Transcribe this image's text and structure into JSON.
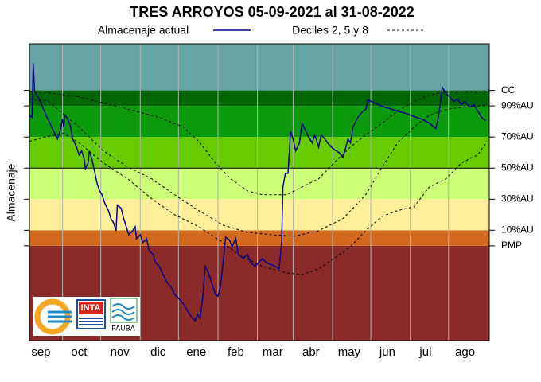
{
  "chart_data": {
    "type": "line",
    "title": "TRES ARROYOS 05-09-2021 al 31-08-2022",
    "y_label": "Almacenaje",
    "xlim": [
      0,
      361
    ],
    "ylim": [
      -61,
      130
    ],
    "xticks": [
      {
        "value": 9,
        "label": "sep"
      },
      {
        "value": 39,
        "label": "oct"
      },
      {
        "value": 71,
        "label": "nov"
      },
      {
        "value": 101,
        "label": "dic"
      },
      {
        "value": 131,
        "label": "ene"
      },
      {
        "value": 162,
        "label": "feb"
      },
      {
        "value": 191,
        "label": "mar"
      },
      {
        "value": 221,
        "label": "abr"
      },
      {
        "value": 251,
        "label": "may"
      },
      {
        "value": 281,
        "label": "jun"
      },
      {
        "value": 311,
        "label": "jul"
      },
      {
        "value": 342,
        "label": "ago"
      }
    ],
    "xgrid": [
      26,
      56,
      87,
      117,
      148,
      179,
      207,
      238,
      268,
      299,
      329,
      360
    ],
    "yticks": [
      {
        "value": 0,
        "label": "PMP"
      },
      {
        "value": 10,
        "label": "10%AU"
      },
      {
        "value": 30,
        "label": "30%AU"
      },
      {
        "value": 50,
        "label": "50%AU"
      },
      {
        "value": 70,
        "label": "70%AU"
      },
      {
        "value": 90,
        "label": "90%AU"
      },
      {
        "value": 100,
        "label": "CC"
      }
    ],
    "band_colors": [
      "#8b2a2a",
      "#d2691e",
      "#ffee99",
      "#ccff77",
      "#66cc00",
      "#0a9a0a",
      "#006600",
      "#66a3a3"
    ],
    "hline": 50,
    "series": [
      {
        "name": "Almacenaje actual",
        "color": "#00008b",
        "x": [
          0,
          2,
          3,
          4,
          6,
          9,
          13,
          17.5,
          22,
          24,
          26,
          27,
          28,
          30,
          32,
          34,
          37,
          39,
          41,
          43,
          44,
          46,
          47,
          49,
          51,
          53,
          55,
          57,
          59,
          62,
          64,
          66,
          68,
          69,
          72,
          74,
          76,
          78,
          81,
          83,
          84,
          87,
          89,
          92,
          94,
          97,
          99,
          102,
          105,
          108,
          111,
          114,
          117,
          121,
          124,
          127,
          130,
          132,
          134,
          136,
          138,
          141,
          143,
          146,
          148,
          150,
          152,
          154,
          157,
          159,
          162,
          164,
          168,
          171,
          174,
          177,
          180,
          183,
          186,
          189,
          193,
          196,
          198,
          199,
          201,
          203,
          205,
          207,
          209,
          212,
          214,
          217,
          219,
          222,
          224,
          227,
          229,
          232,
          234,
          237,
          239,
          243,
          246,
          248,
          250,
          252,
          254,
          257,
          259,
          262,
          264,
          266,
          271,
          277,
          283,
          289,
          296,
          302,
          308,
          314,
          319,
          321,
          323,
          324,
          327,
          330,
          333,
          336,
          339,
          342,
          346,
          349,
          352,
          355,
          358
        ],
        "values": [
          84.1,
          82.6,
          117.4,
          99.5,
          96.9,
          91.8,
          84.1,
          76.4,
          68.7,
          73.8,
          81.5,
          76.4,
          84.1,
          81.5,
          77.4,
          68.7,
          63.6,
          58.5,
          61.0,
          55.9,
          49.7,
          53.3,
          61.0,
          55.9,
          48.2,
          40.5,
          35.4,
          32.8,
          27.7,
          22.6,
          17.4,
          14.9,
          9.7,
          26.2,
          24.1,
          17.4,
          12.3,
          7.2,
          9.7,
          12.3,
          4.6,
          7.2,
          2.1,
          4.6,
          -3.1,
          -5.6,
          -10.8,
          -13.3,
          -18.5,
          -23.6,
          -26.2,
          -31.3,
          -33.8,
          -37.4,
          -41.5,
          -45.6,
          -48.2,
          -44.1,
          -46.7,
          -33.8,
          -13.3,
          -18.5,
          -23.6,
          -31.3,
          -32.3,
          -26.2,
          -10.8,
          5.6,
          3.6,
          -0.5,
          4.6,
          -5.6,
          -8.2,
          -5.6,
          -10.8,
          -13.3,
          -10.8,
          -8.2,
          -10.8,
          -11.8,
          -13.3,
          -14.9,
          2.1,
          37.9,
          46.7,
          46.7,
          73.8,
          68.7,
          61.0,
          66.2,
          78.9,
          73.8,
          70.3,
          66.2,
          71.3,
          63.6,
          71.3,
          68.7,
          66.2,
          63.6,
          62.1,
          60.0,
          56.9,
          62.1,
          68.7,
          66.2,
          76.4,
          81.5,
          84.1,
          86.7,
          87.7,
          93.8,
          91.8,
          89.7,
          88.2,
          86.7,
          85.1,
          83.1,
          81.5,
          78.9,
          75.4,
          82.6,
          94.4,
          102.1,
          97.9,
          95.9,
          92.8,
          94.4,
          90.8,
          92.8,
          89.2,
          90.8,
          86.7,
          82.6,
          80.5
        ]
      },
      {
        "name": "Deciles 2, 5 y 8",
        "color": "#000000",
        "dash": true,
        "lines": [
          {
            "x": [
              0,
              21,
              39,
              58,
              83,
              102,
              121,
              133,
              146,
              158,
              171,
              183,
              202,
              214,
              227,
              239,
              252,
              264,
              277,
              289,
              302,
              314,
              327,
              339,
              359
            ],
            "values": [
              99.5,
              97.9,
              95.9,
              91.8,
              86.7,
              82.6,
              76.4,
              67.2,
              53.3,
              43.1,
              35.4,
              32.8,
              32.8,
              37.9,
              43.1,
              53.3,
              63.6,
              71.3,
              79.0,
              86.7,
              92.8,
              96.9,
              99.0,
              99.0,
              99.0
            ]
          },
          {
            "x": [
              0,
              14,
              39,
              58,
              77,
              96,
              114,
              133,
              152,
              171,
              189,
              208,
              227,
              246,
              264,
              277,
              289,
              302,
              314,
              327,
              339,
              359
            ],
            "values": [
              94.4,
              93.3,
              76.4,
              61.0,
              50.8,
              43.1,
              32.8,
              22.6,
              13.3,
              8.7,
              7.2,
              6.2,
              9.7,
              17.4,
              32.8,
              50.8,
              66.2,
              76.4,
              84.1,
              87.7,
              89.2,
              90.3
            ]
          },
          {
            "x": [
              0,
              14,
              27,
              39,
              58,
              77,
              96,
              114,
              133,
              152,
              164,
              183,
              202,
              214,
              227,
              239,
              252,
              264,
              277,
              289,
              302,
              314,
              327,
              339,
              352,
              359
            ],
            "values": [
              67.2,
              70.3,
              72.3,
              66.2,
              53.3,
              43.1,
              30.3,
              20.0,
              12.3,
              2.1,
              -5.6,
              -13.3,
              -17.4,
              -18.5,
              -14.9,
              -8.2,
              -0.5,
              9.7,
              19.0,
              22.6,
              25.1,
              37.9,
              43.1,
              53.3,
              58.5,
              67.2
            ]
          }
        ]
      }
    ],
    "logo_texts": [
      "INTA",
      "FAUBA"
    ]
  }
}
